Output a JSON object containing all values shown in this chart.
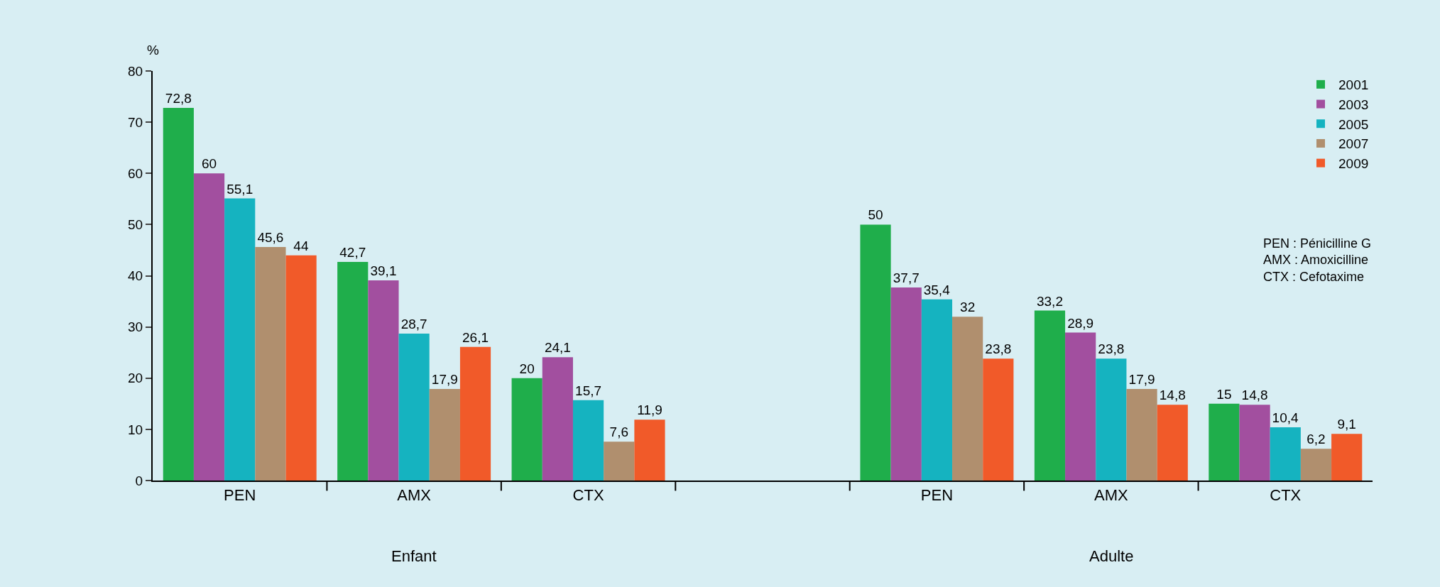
{
  "chart_data": {
    "type": "bar",
    "ylabel": "%",
    "categories": [
      "PEN",
      "AMX",
      "CTX",
      null,
      "PEN",
      "AMX",
      "CTX"
    ],
    "series": [
      {
        "name": "2001",
        "color": "#1fae4b",
        "values": [
          72.8,
          42.7,
          20,
          null,
          50,
          33.2,
          15
        ],
        "value_labels": [
          "72,8",
          "42,7",
          "20",
          null,
          "50",
          "33,2",
          "15"
        ]
      },
      {
        "name": "2003",
        "color": "#a24f9f",
        "values": [
          60,
          39.1,
          24.1,
          null,
          37.7,
          28.9,
          14.8
        ],
        "value_labels": [
          "60",
          "39,1",
          "24,1",
          null,
          "37,7",
          "28,9",
          "14,8"
        ]
      },
      {
        "name": "2005",
        "color": "#15b3c0",
        "values": [
          55.1,
          28.7,
          15.7,
          null,
          35.4,
          23.8,
          10.4
        ],
        "value_labels": [
          "55,1",
          "28,7",
          "15,7",
          null,
          "35,4",
          "23,8",
          "10,4"
        ]
      },
      {
        "name": "2007",
        "color": "#b08f6e",
        "values": [
          45.6,
          17.9,
          7.6,
          null,
          32,
          17.9,
          6.2
        ],
        "value_labels": [
          "45,6",
          "17,9",
          "7,6",
          null,
          "32",
          "17,9",
          "6,2"
        ]
      },
      {
        "name": "2009",
        "color": "#f15a29",
        "values": [
          44,
          26.1,
          11.9,
          null,
          23.8,
          14.8,
          9.1
        ],
        "value_labels": [
          "44",
          "26,1",
          "11,9",
          null,
          "23,8",
          "14,8",
          "9,1"
        ]
      }
    ],
    "annotations": [
      "Enfant",
      "Adulte",
      "PEN : Pénicilline G\nAMX : Amoxicilline\nCTX : Cefotaxime"
    ],
    "ylim": [
      0,
      80
    ],
    "yticks": [
      0,
      10,
      20,
      30,
      40,
      50,
      60,
      70,
      80
    ],
    "grid": false,
    "legend": "top right"
  }
}
